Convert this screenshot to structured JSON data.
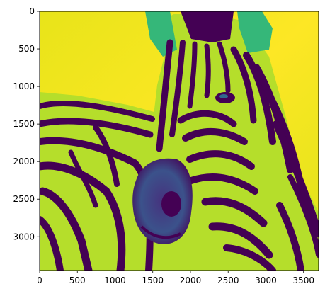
{
  "chart_data": {
    "type": "heatmap",
    "title": "",
    "xlabel": "",
    "ylabel": "",
    "image_content": "zebra-head-photo",
    "colormap": "viridis",
    "colors": {
      "low": "#440154",
      "mid_low": "#3b528b",
      "mid": "#21918c",
      "mid_high": "#5ec962",
      "high": "#fde725"
    },
    "xlim": [
      0,
      3700
    ],
    "ylim": [
      3450,
      0
    ],
    "x_ticks": [
      0,
      500,
      1000,
      1500,
      2000,
      2500,
      3000,
      3500
    ],
    "y_ticks": [
      0,
      500,
      1000,
      1500,
      2000,
      2500,
      3000
    ],
    "x_tick_labels": [
      "0",
      "500",
      "1000",
      "1500",
      "2000",
      "2500",
      "3000",
      "3500"
    ],
    "y_tick_labels": [
      "0",
      "500",
      "1000",
      "1500",
      "2000",
      "2500",
      "3000"
    ],
    "grid": false,
    "legend": "none"
  }
}
